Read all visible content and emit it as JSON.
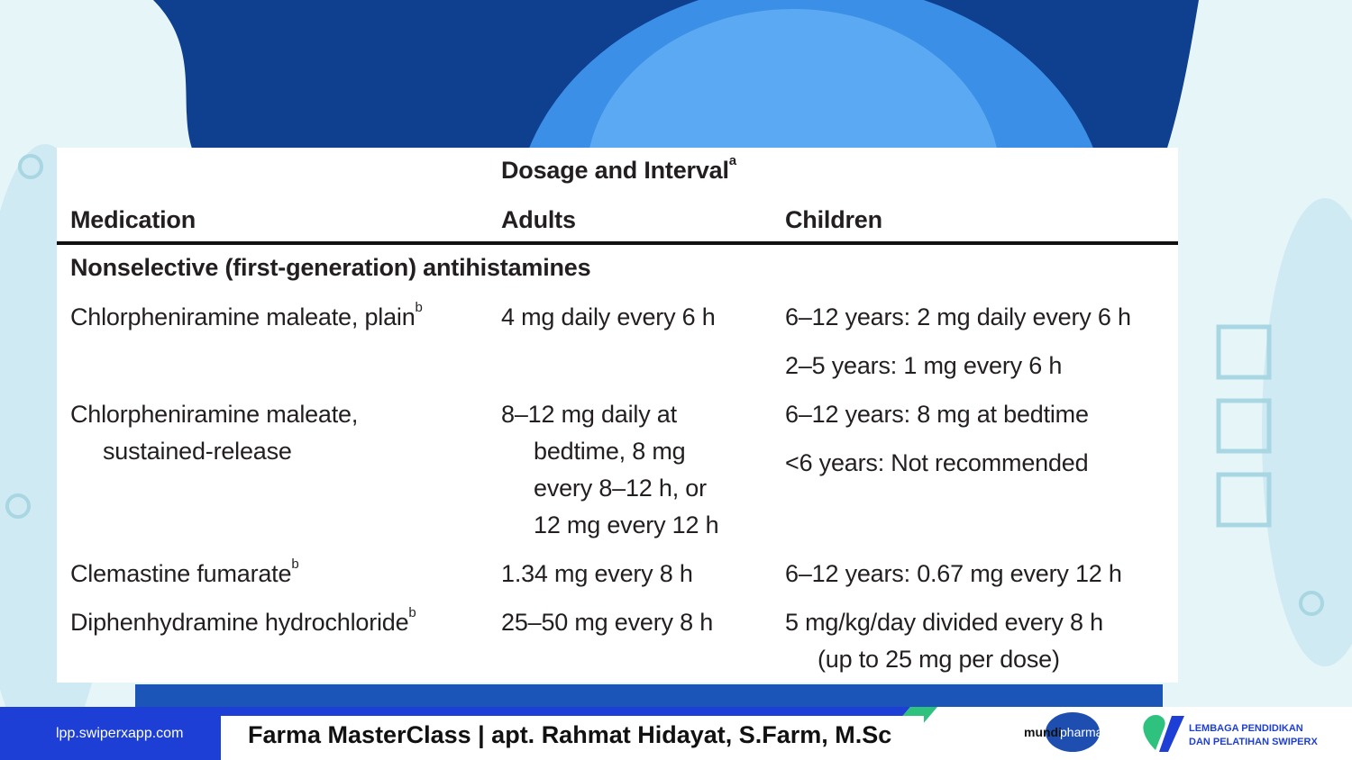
{
  "table": {
    "title": "Dosage and Interval",
    "title_note": "a",
    "columns": [
      "Medication",
      "Adults",
      "Children"
    ],
    "section": "Nonselective (first-generation) antihistamines",
    "rows": [
      {
        "medication": [
          "Chlorpheniramine maleate, plain"
        ],
        "note": "b",
        "adults": [
          "4 mg daily every 6 h"
        ],
        "children": [
          "6–12 years: 2 mg daily every 6 h",
          "2–5 years: 1 mg every 6 h"
        ]
      },
      {
        "medication": [
          "Chlorpheniramine maleate,",
          "sustained-release"
        ],
        "note": "",
        "adults": [
          "8–12 mg daily at",
          "bedtime, 8 mg",
          "every 8–12 h, or",
          "12 mg every 12 h"
        ],
        "children": [
          "6–12 years: 8 mg at bedtime",
          "<6 years: Not recommended"
        ]
      },
      {
        "medication": [
          "Clemastine fumarate"
        ],
        "note": "b",
        "adults": [
          "1.34 mg every 8 h"
        ],
        "children": [
          "6–12 years: 0.67 mg every 12 h"
        ]
      },
      {
        "medication": [
          "Diphenhydramine hydrochloride"
        ],
        "note": "b",
        "adults": [
          "25–50 mg every 8 h"
        ],
        "children": [
          "5 mg/kg/day divided every 8 h",
          "(up to 25 mg per dose)"
        ]
      }
    ]
  },
  "footer": {
    "url": "lpp.swiperxapp.com",
    "title": "Farma MasterClass | apt. Rahmat Hidayat, S.Farm, M.Sc",
    "sponsor": [
      "mundi",
      "pharma"
    ],
    "organization": [
      "LEMBAGA PENDIDIKAN",
      "DAN PELATIHAN SWIPERX"
    ]
  }
}
